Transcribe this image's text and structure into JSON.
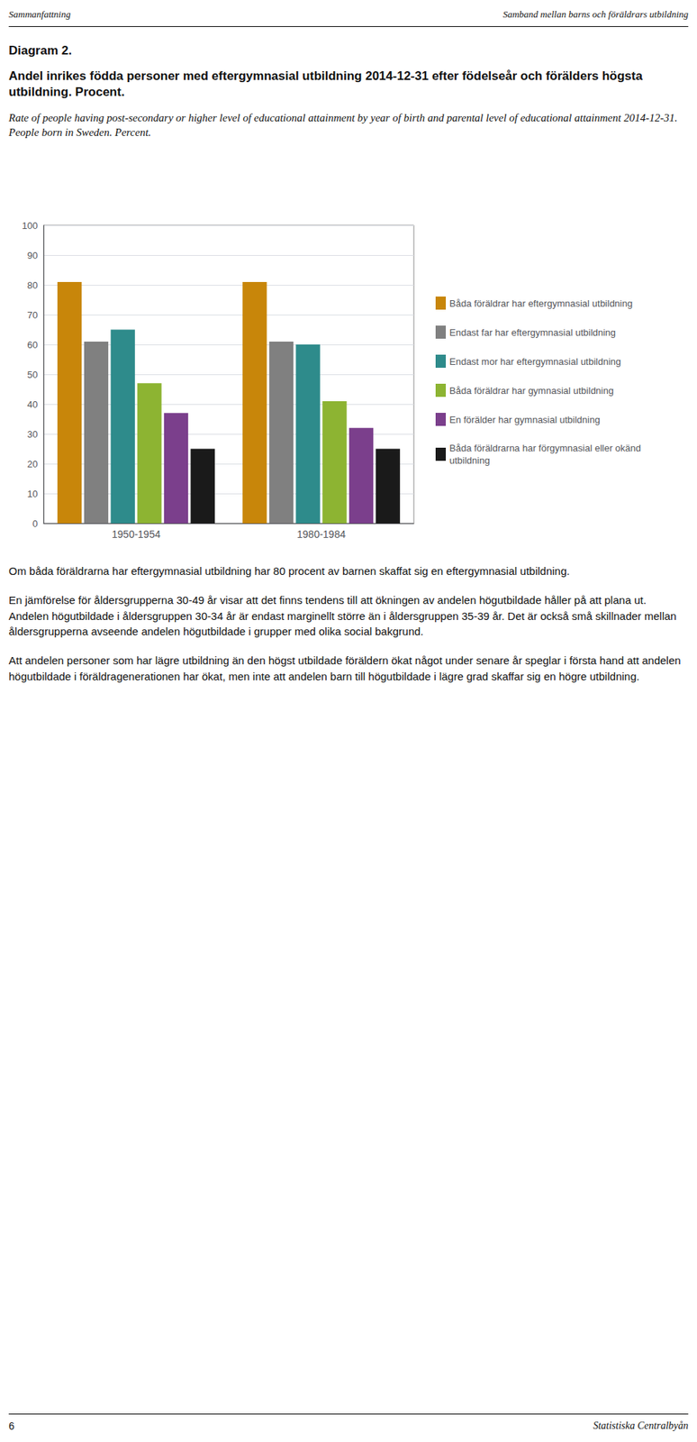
{
  "chart_data": {
    "type": "bar",
    "title": "Andel inrikes födda personer med eftergymnasial utbildning 2014-12-31 efter födelseår och förälders högsta utbildning. Procent.",
    "subtitle": "Rate of people having post-secondary or higher level of educational attainment by year of birth and parental level of educational attainment 2014-12-31. People born in Sweden. Percent.",
    "annotations": [
      "Sammanfattning",
      "Samband mellan barns och föräldrars utbildning",
      "Diagram 2.",
      "Om båda föräldrarna har eftergymnasial utbildning har 80 procent av barnen skaffat sig en eftergymnasial utbildning.",
      "En jämförelse för åldersgrupperna 30-49 år visar att det finns tendens till att ökningen av andelen högutbildade håller på att plana ut. Andelen högutbildade i åldersgruppen 30-34 år är endast marginellt större än i åldersgruppen 35-39 år. Det är också små skillnader mellan åldersgrupperna avseende andelen högutbildade i grupper med olika social bakgrund.",
      "Att andelen personer som har lägre utbildning än den högst utbildade föräldern ökat något under senare år speglar i första hand att andelen högutbildade i föräldragenerationen har ökat, men inte att andelen barn till högutbildade i lägre grad skaffar sig en högre utbildning.",
      "6",
      "Statistiska Centralbyån"
    ],
    "categories": [
      "1950-1954",
      "1980-1984"
    ],
    "series": [
      {
        "name": "Båda föräldrar har eftergymnasial utbildning",
        "color": "#C8860A",
        "values": [
          81,
          81
        ]
      },
      {
        "name": "Endast far har eftergymnasial utbildning",
        "color": "#808080",
        "values": [
          61,
          61
        ]
      },
      {
        "name": "Endast mor har eftergymnasial utbildning",
        "color": "#2E8B8B",
        "values": [
          65,
          60
        ]
      },
      {
        "name": "Båda föräldrar har gymnasial utbildning",
        "color": "#8DB432",
        "values": [
          47,
          41
        ]
      },
      {
        "name": "En förälder har gymnasial utbildning",
        "color": "#7B3F8C",
        "values": [
          37,
          32
        ]
      },
      {
        "name": "Båda föräldrarna har förgymnasial eller okänd utbildning",
        "color": "#1A1A1A",
        "values": [
          25,
          25
        ]
      }
    ],
    "ylim": [
      0,
      100
    ],
    "yticks": [
      0,
      10,
      20,
      30,
      40,
      50,
      60,
      70,
      80,
      90,
      100
    ],
    "grid": true,
    "legend": "right"
  }
}
